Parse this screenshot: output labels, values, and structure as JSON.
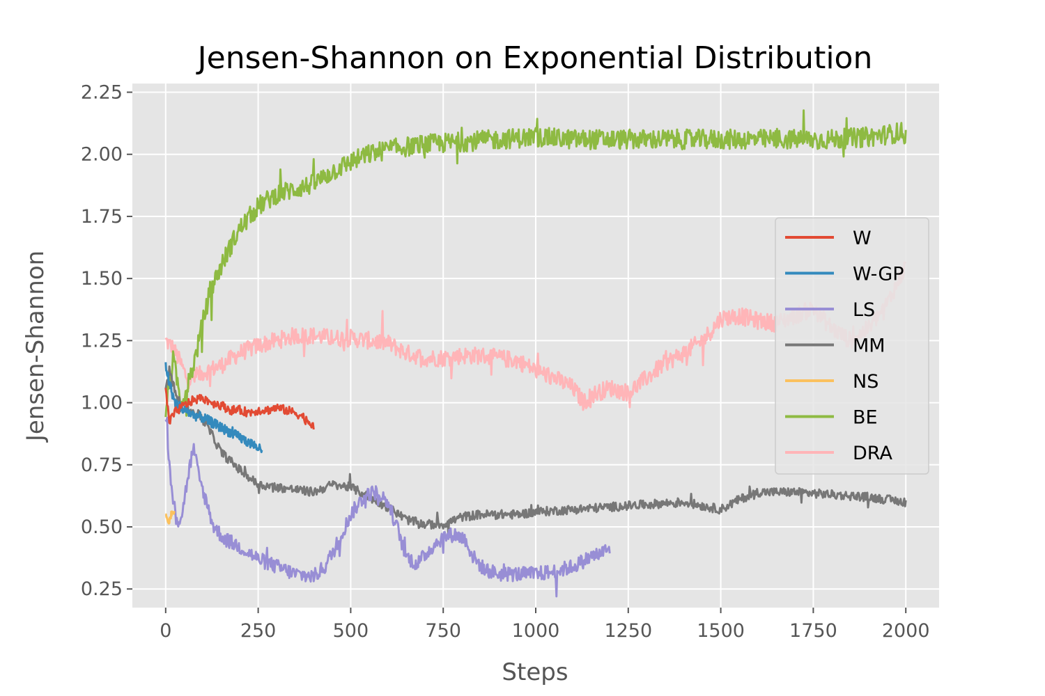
{
  "chart_data": {
    "type": "line",
    "title": "Jensen-Shannon on Exponential Distribution",
    "xlabel": "Steps",
    "ylabel": "Jensen-Shannon",
    "xlim": [
      -90,
      2090
    ],
    "ylim": [
      0.175,
      2.285
    ],
    "xticks": [
      0,
      250,
      500,
      750,
      1000,
      1250,
      1500,
      1750,
      2000
    ],
    "yticks": [
      0.25,
      0.5,
      0.75,
      1.0,
      1.25,
      1.5,
      1.75,
      2.0,
      2.25
    ],
    "xtick_labels": [
      "0",
      "250",
      "500",
      "750",
      "1000",
      "1250",
      "1500",
      "1750",
      "2000"
    ],
    "ytick_labels": [
      "0.25",
      "0.50",
      "0.75",
      "1.00",
      "1.25",
      "1.50",
      "1.75",
      "2.00",
      "2.25"
    ],
    "grid": true,
    "legend_position": "center-right",
    "background": "#e5e5e5",
    "series": [
      {
        "name": "W",
        "color": "#e24a33",
        "noise": 0.018,
        "x": [
          0,
          10,
          25,
          50,
          75,
          100,
          125,
          150,
          175,
          200,
          225,
          250,
          275,
          300,
          325,
          350,
          375,
          390,
          400
        ],
        "y": [
          1.05,
          0.92,
          0.96,
          0.99,
          1.01,
          1.02,
          1.0,
          0.99,
          0.97,
          0.97,
          0.96,
          0.97,
          0.97,
          0.98,
          0.97,
          0.96,
          0.94,
          0.92,
          0.91
        ]
      },
      {
        "name": "W-GP",
        "color": "#348abd",
        "noise": 0.02,
        "x": [
          0,
          10,
          25,
          50,
          75,
          100,
          125,
          150,
          175,
          200,
          225,
          250,
          260
        ],
        "y": [
          1.15,
          1.08,
          1.0,
          0.97,
          0.95,
          0.94,
          0.92,
          0.9,
          0.88,
          0.86,
          0.84,
          0.82,
          0.8
        ]
      },
      {
        "name": "LS",
        "color": "#988ed5",
        "noise": 0.03,
        "x": [
          0,
          10,
          20,
          35,
          45,
          60,
          75,
          90,
          110,
          130,
          160,
          200,
          250,
          300,
          350,
          400,
          430,
          460,
          500,
          540,
          570,
          600,
          625,
          650,
          680,
          720,
          750,
          780,
          810,
          830,
          860,
          900,
          950,
          1000,
          1050,
          1100,
          1150,
          1200
        ],
        "y": [
          0.95,
          0.75,
          0.6,
          0.52,
          0.56,
          0.7,
          0.82,
          0.7,
          0.6,
          0.5,
          0.45,
          0.42,
          0.37,
          0.34,
          0.31,
          0.3,
          0.34,
          0.42,
          0.55,
          0.63,
          0.64,
          0.6,
          0.5,
          0.38,
          0.35,
          0.42,
          0.46,
          0.47,
          0.45,
          0.38,
          0.33,
          0.31,
          0.31,
          0.31,
          0.32,
          0.34,
          0.38,
          0.41
        ]
      },
      {
        "name": "MM",
        "color": "#777777",
        "noise": 0.018,
        "x": [
          0,
          10,
          25,
          40,
          60,
          80,
          100,
          125,
          150,
          200,
          250,
          300,
          350,
          400,
          450,
          500,
          550,
          600,
          650,
          700,
          750,
          800,
          850,
          900,
          950,
          1000,
          1100,
          1200,
          1300,
          1400,
          1500,
          1550,
          1600,
          1700,
          1800,
          1900,
          2000
        ],
        "y": [
          1.05,
          1.12,
          1.05,
          0.99,
          0.97,
          0.96,
          0.94,
          0.87,
          0.8,
          0.73,
          0.67,
          0.66,
          0.65,
          0.64,
          0.67,
          0.66,
          0.62,
          0.58,
          0.53,
          0.51,
          0.51,
          0.54,
          0.55,
          0.55,
          0.55,
          0.56,
          0.57,
          0.58,
          0.59,
          0.6,
          0.57,
          0.61,
          0.64,
          0.64,
          0.63,
          0.62,
          0.6
        ]
      },
      {
        "name": "NS",
        "color": "#fbc15e",
        "noise": 0.012,
        "x": [
          0,
          5,
          10,
          15,
          20,
          25
        ],
        "y": [
          0.54,
          0.53,
          0.52,
          0.55,
          0.56,
          0.55
        ]
      },
      {
        "name": "BE",
        "color": "#8eba42",
        "noise": 0.04,
        "x": [
          0,
          10,
          20,
          30,
          40,
          50,
          60,
          80,
          100,
          120,
          150,
          175,
          200,
          250,
          300,
          350,
          400,
          450,
          500,
          550,
          600,
          700,
          800,
          900,
          1000,
          1100,
          1200,
          1300,
          1400,
          1500,
          1600,
          1700,
          1800,
          1900,
          1950,
          1990,
          2000
        ],
        "y": [
          0.97,
          1.08,
          1.17,
          1.1,
          1.0,
          1.03,
          1.07,
          1.18,
          1.32,
          1.45,
          1.55,
          1.63,
          1.7,
          1.79,
          1.84,
          1.86,
          1.88,
          1.93,
          1.97,
          2.0,
          2.02,
          2.04,
          2.05,
          2.06,
          2.07,
          2.06,
          2.06,
          2.06,
          2.06,
          2.06,
          2.06,
          2.06,
          2.06,
          2.07,
          2.08,
          2.09,
          2.07
        ]
      },
      {
        "name": "DRA",
        "color": "#ffb5b8",
        "noise": 0.035,
        "x": [
          0,
          20,
          40,
          60,
          80,
          100,
          150,
          200,
          250,
          300,
          350,
          400,
          450,
          500,
          550,
          600,
          650,
          700,
          750,
          800,
          850,
          900,
          950,
          1000,
          1050,
          1100,
          1130,
          1150,
          1200,
          1250,
          1300,
          1350,
          1400,
          1450,
          1480,
          1500,
          1550,
          1600,
          1650,
          1700,
          1750,
          1800,
          1850,
          1900,
          1950,
          2000
        ],
        "y": [
          1.25,
          1.22,
          1.16,
          1.09,
          1.1,
          1.12,
          1.15,
          1.2,
          1.23,
          1.25,
          1.27,
          1.27,
          1.26,
          1.26,
          1.25,
          1.24,
          1.2,
          1.18,
          1.18,
          1.19,
          1.19,
          1.18,
          1.17,
          1.13,
          1.1,
          1.06,
          1.0,
          1.03,
          1.06,
          1.04,
          1.1,
          1.16,
          1.2,
          1.25,
          1.3,
          1.34,
          1.35,
          1.33,
          1.32,
          1.35,
          1.38,
          1.3,
          1.25,
          1.3,
          1.4,
          1.55
        ]
      }
    ]
  }
}
